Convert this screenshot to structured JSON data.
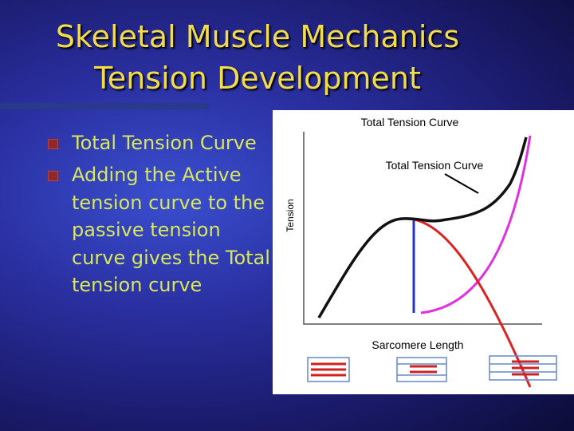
{
  "slide": {
    "title": "Skeletal Muscle Mechanics",
    "subtitle": "Tension Development",
    "bullets": [
      {
        "lines": [
          "Total Tension Curve"
        ]
      },
      {
        "lines": [
          "Adding the Active",
          "tension curve to the",
          "passive tension",
          "curve gives the Total",
          "tension curve"
        ]
      }
    ],
    "figure": {
      "title": "Total Tension Curve",
      "annotation": "Total Tension Curve",
      "y_label": "Tension",
      "x_label": "Sarcomere Length"
    }
  }
}
